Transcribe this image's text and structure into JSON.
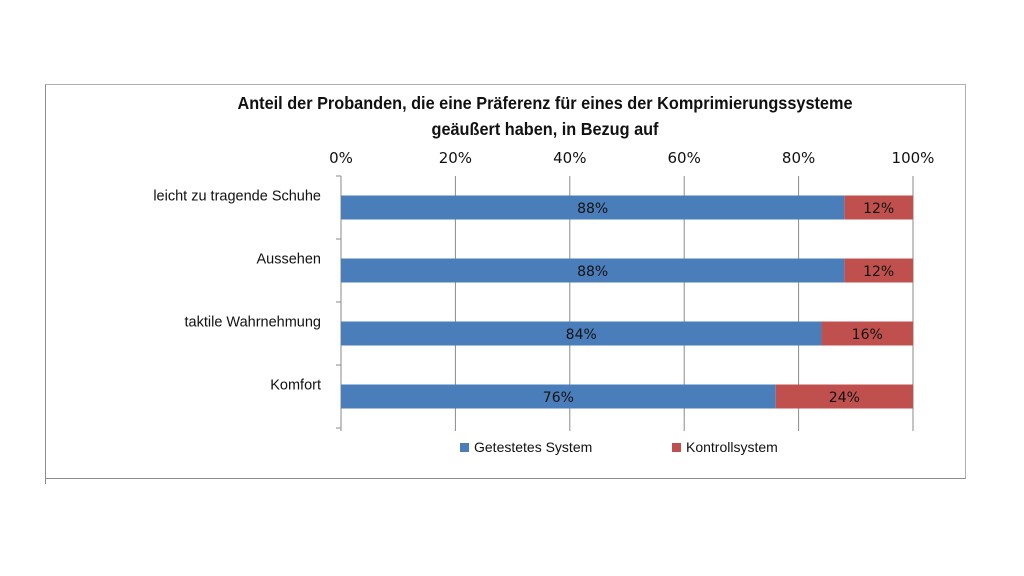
{
  "chart_data": {
    "type": "bar",
    "orientation": "horizontal",
    "stacked": "percent",
    "title": [
      "Anteil der Probanden, die eine Präferenz für eines der Komprimierungssysteme",
      "geäußert haben, in Bezug auf"
    ],
    "categories": [
      "leicht zu tragende Schuhe",
      "Aussehen",
      "taktile Wahrnehmung",
      "Komfort"
    ],
    "series": [
      {
        "name": "Getestetes System",
        "color": "#4a7ebb",
        "values": [
          88,
          88,
          84,
          76
        ],
        "labels": [
          "88%",
          "88%",
          "84%",
          "76%"
        ]
      },
      {
        "name": "Kontrollsystem",
        "color": "#c0504d",
        "values": [
          12,
          12,
          16,
          24
        ],
        "labels": [
          "12%",
          "12%",
          "16%",
          "24%"
        ]
      }
    ],
    "xlim": [
      0,
      100
    ],
    "xticks": [
      0,
      20,
      40,
      60,
      80,
      100
    ],
    "xtick_labels": [
      "0%",
      "20%",
      "40%",
      "60%",
      "80%",
      "100%"
    ],
    "xaxis_position": "top",
    "grid": true,
    "legend": "bottom"
  }
}
